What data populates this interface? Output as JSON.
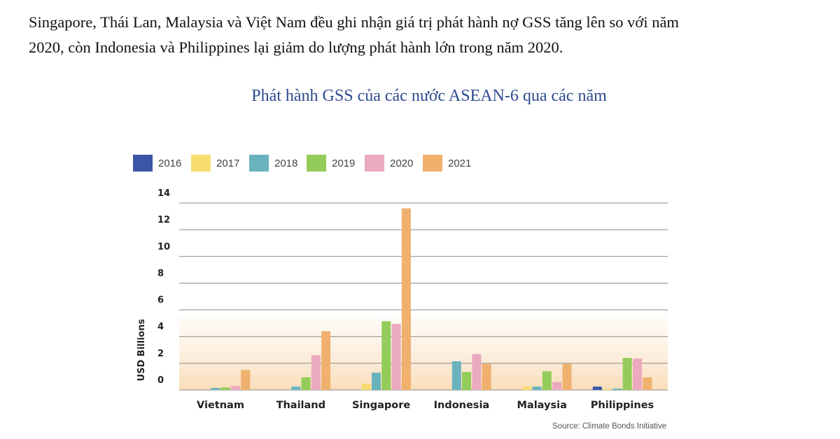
{
  "intro": {
    "line1": "Singapore, Thái Lan, Malaysia và Việt Nam đều ghi nhận giá trị phát hành nợ GSS tăng lên so với năm",
    "line2": "2020, còn Indonesia và Philippines lại giảm do lượng phát hành lớn trong năm 2020."
  },
  "chart_data": {
    "type": "bar",
    "title": "Phát hành GSS của các nước ASEAN-6 qua các năm",
    "ylabel": "USD Billions",
    "xlabel": "",
    "ylim": [
      0,
      14
    ],
    "yticks": [
      "0",
      "2",
      "4",
      "6",
      "8",
      "10",
      "12",
      "14"
    ],
    "grid": true,
    "legend_position": "top-left",
    "source": "Source: Climate Bonds Initiative",
    "categories": [
      "Vietnam",
      "Thailand",
      "Singapore",
      "Indonesia",
      "Malaysia",
      "Philippines"
    ],
    "series": [
      {
        "name": "2016",
        "color": "#3a56a4",
        "values": [
          0,
          0,
          0,
          0,
          0,
          0.25
        ]
      },
      {
        "name": "2017",
        "color": "#f8dc6e",
        "values": [
          0,
          0,
          0.45,
          0,
          0.25,
          0.05
        ]
      },
      {
        "name": "2018",
        "color": "#6ab3bd",
        "values": [
          0.15,
          0.25,
          1.3,
          2.15,
          0.25,
          0.1
        ]
      },
      {
        "name": "2019",
        "color": "#93cc5a",
        "values": [
          0.2,
          0.95,
          5.15,
          1.35,
          1.4,
          2.4
        ]
      },
      {
        "name": "2020",
        "color": "#ebaabf",
        "values": [
          0.3,
          2.6,
          4.95,
          2.7,
          0.6,
          2.35
        ]
      },
      {
        "name": "2021",
        "color": "#f0b06e",
        "values": [
          1.5,
          4.4,
          13.6,
          1.95,
          1.95,
          0.95
        ]
      }
    ]
  }
}
